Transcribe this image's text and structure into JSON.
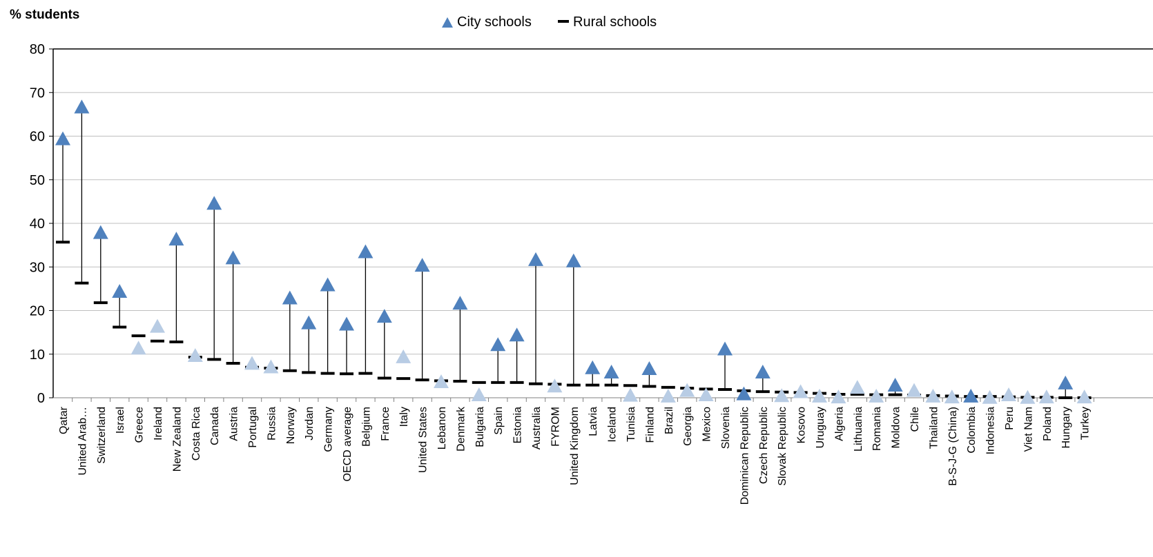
{
  "chart_data": {
    "type": "scatter",
    "y_unit_label": "% students",
    "ylim": [
      0,
      80
    ],
    "yticks": [
      0,
      10,
      20,
      30,
      40,
      50,
      60,
      70,
      80
    ],
    "grid": true,
    "legend_position": "top-center",
    "categories": [
      "Qatar",
      "United Arab…",
      "Switzerland",
      "Israel",
      "Greece",
      "Ireland",
      "New Zealand",
      "Costa Rica",
      "Canada",
      "Austria",
      "Portugal",
      "Russia",
      "Norway",
      "Jordan",
      "Germany",
      "OECD average",
      "Belgium",
      "France",
      "Italy",
      "United States",
      "Lebanon",
      "Denmark",
      "Bulgaria",
      "Spain",
      "Estonia",
      "Australia",
      "FYROM",
      "United Kingdom",
      "Latvia",
      "Iceland",
      "Tunisia",
      "Finland",
      "Brazil",
      "Georgia",
      "Mexico",
      "Slovenia",
      "Dominican Republic",
      "Czech Republic",
      "Slovak Republic",
      "Kosovo",
      "Uruguay",
      "Algeria",
      "Lithuania",
      "Romania",
      "Moldova",
      "Chile",
      "Thailand",
      "B-S-J-G (China)",
      "Colombia",
      "Indonesia",
      "Peru",
      "Viet Nam",
      "Poland",
      "Hungary",
      "Turkey"
    ],
    "series": [
      {
        "name": "City schools",
        "marker": "triangle",
        "values": [
          59.5,
          66.8,
          38,
          24.5,
          11.5,
          16.5,
          36.5,
          9.8,
          44.7,
          32.2,
          8,
          7.2,
          23,
          17.3,
          26,
          17,
          33.6,
          18.8,
          9.5,
          30.5,
          3.8,
          21.8,
          0.8,
          12.3,
          14.5,
          31.8,
          2.8,
          31.5,
          7,
          6,
          0.7,
          6.8,
          0.5,
          1.8,
          0.8,
          11.3,
          1,
          6,
          0.6,
          1.5,
          0.5,
          0.3,
          2.5,
          0.5,
          3,
          1.8,
          0.5,
          0.3,
          0.5,
          0.2,
          0.8,
          0.2,
          0.3,
          3.5,
          0.3
        ],
        "highlight_significant": [
          true,
          true,
          true,
          true,
          false,
          false,
          true,
          false,
          true,
          true,
          false,
          false,
          true,
          true,
          true,
          true,
          true,
          true,
          false,
          true,
          false,
          true,
          false,
          true,
          true,
          true,
          false,
          true,
          true,
          true,
          false,
          true,
          false,
          false,
          false,
          true,
          true,
          true,
          false,
          false,
          false,
          false,
          false,
          false,
          true,
          false,
          false,
          false,
          true,
          false,
          false,
          false,
          false,
          true,
          false
        ]
      },
      {
        "name": "Rural schools",
        "marker": "dash",
        "values": [
          35.7,
          26.3,
          21.8,
          16.2,
          14.2,
          13,
          12.8,
          9.3,
          8.8,
          7.9,
          7,
          6.8,
          6.2,
          5.8,
          5.6,
          5.5,
          5.6,
          4.5,
          4.4,
          4.1,
          3.9,
          3.8,
          3.5,
          3.5,
          3.5,
          3.2,
          3.1,
          2.9,
          2.9,
          2.9,
          2.8,
          2.6,
          2.4,
          2.2,
          2,
          1.9,
          1.6,
          1.4,
          1.3,
          1.2,
          1,
          0.8,
          0.8,
          0.7,
          0.7,
          0.6,
          0.5,
          0.4,
          0.3,
          0.3,
          0.2,
          0.1,
          0.1,
          0,
          0
        ]
      }
    ],
    "colors": {
      "significant": "#4F81BD",
      "not_significant": "#B8CCE4",
      "rural": "#000000",
      "grid": "#BFBFBF",
      "axis": "#000000"
    }
  }
}
